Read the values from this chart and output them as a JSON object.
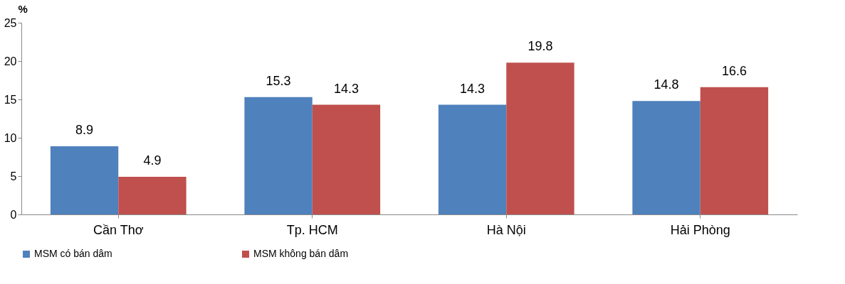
{
  "chart_data": {
    "type": "bar",
    "ylabel": "%",
    "categories": [
      "Cần Thơ",
      "Tp. HCM",
      "Hà Nội",
      "Hải Phòng"
    ],
    "series": [
      {
        "name": "MSM có bán dâm",
        "color": "#4f81bd",
        "values": [
          8.9,
          15.3,
          14.3,
          14.8
        ]
      },
      {
        "name": "MSM không bán dâm",
        "color": "#c0504d",
        "values": [
          4.9,
          14.3,
          19.8,
          16.6
        ]
      }
    ],
    "ylim": [
      0,
      25
    ],
    "yticks": [
      0,
      5,
      10,
      15,
      20,
      25
    ],
    "grid": false,
    "legend": "bottom",
    "data_labels": true
  }
}
